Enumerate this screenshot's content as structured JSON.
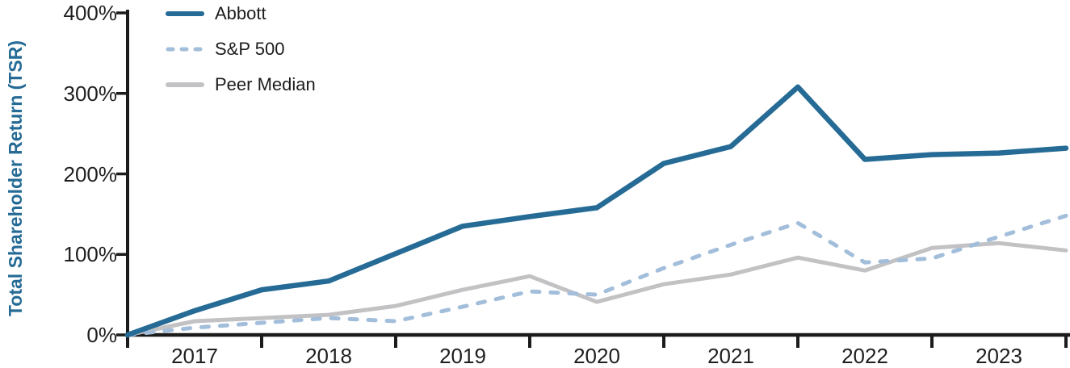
{
  "chart_data": {
    "type": "line",
    "title": "",
    "ylabel": "Total Shareholder Return (TSR)",
    "xlabel": "",
    "grid": false,
    "legend_position": "top-left",
    "ylim": [
      0,
      400
    ],
    "y_tick_labels": [
      "0%",
      "100%",
      "200%",
      "300%",
      "400%"
    ],
    "x_tick_labels": [
      "2017",
      "2018",
      "2019",
      "2020",
      "2021",
      "2022",
      "2023"
    ],
    "x": [
      "2016-12",
      "2017-06",
      "2017-12",
      "2018-06",
      "2018-12",
      "2019-06",
      "2019-12",
      "2020-06",
      "2020-12",
      "2021-06",
      "2021-12",
      "2022-06",
      "2022-12",
      "2023-06",
      "2023-12"
    ],
    "series": [
      {
        "name": "Abbott",
        "color": "#256B95",
        "style": "solid",
        "width": 6.5,
        "values": [
          0,
          30,
          56,
          67,
          101,
          135,
          147,
          158,
          213,
          234,
          308,
          218,
          224,
          226,
          232
        ]
      },
      {
        "name": "S&P 500",
        "color": "#A2BEDA",
        "style": "dashed",
        "width": 5,
        "values": [
          0,
          9,
          15,
          21,
          17,
          35,
          54,
          50,
          83,
          112,
          139,
          90,
          95,
          122,
          148
        ]
      },
      {
        "name": "Peer Median",
        "color": "#C2C2C4",
        "style": "solid",
        "width": 5,
        "values": [
          0,
          17,
          21,
          25,
          36,
          56,
          73,
          41,
          63,
          75,
          96,
          80,
          108,
          114,
          105
        ]
      }
    ]
  },
  "colors": {
    "axis": "#1b1b1b",
    "tick_text": "#1f1f1f",
    "ylabel_text": "#256B95"
  }
}
